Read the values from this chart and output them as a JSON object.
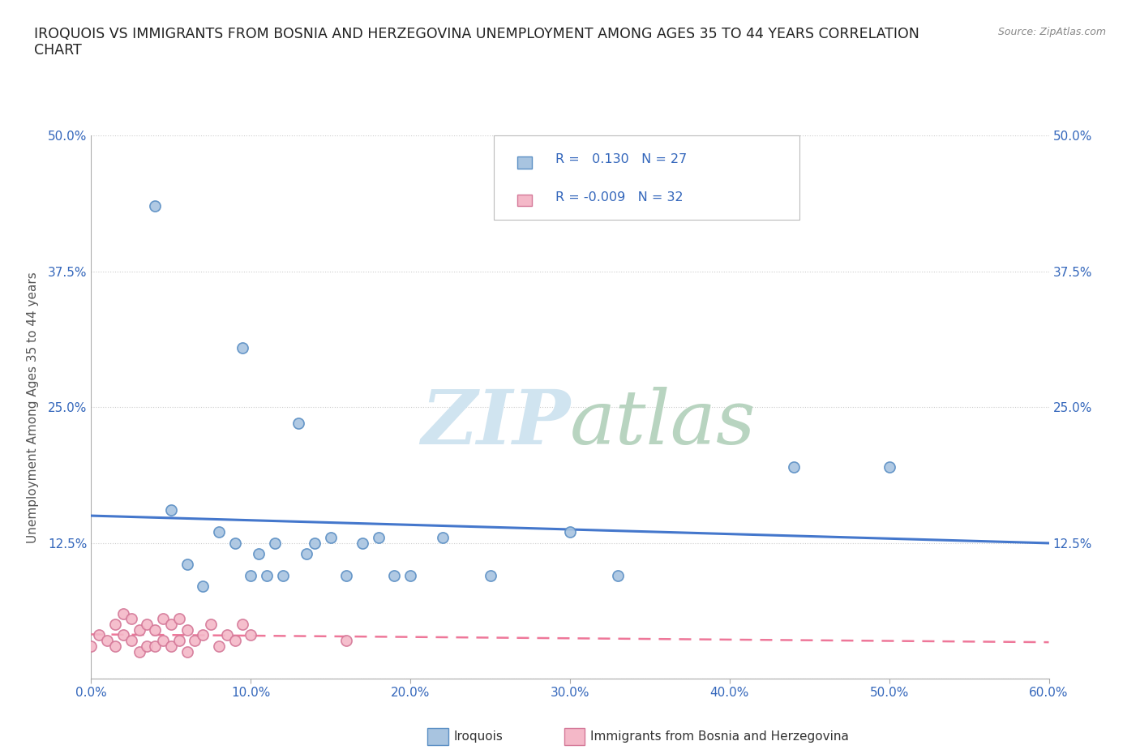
{
  "title": "IROQUOIS VS IMMIGRANTS FROM BOSNIA AND HERZEGOVINA UNEMPLOYMENT AMONG AGES 35 TO 44 YEARS CORRELATION\nCHART",
  "source_text": "Source: ZipAtlas.com",
  "ylabel": "Unemployment Among Ages 35 to 44 years",
  "xlim": [
    0.0,
    0.6
  ],
  "ylim": [
    0.0,
    0.5
  ],
  "xticks": [
    0.0,
    0.1,
    0.2,
    0.3,
    0.4,
    0.5,
    0.6
  ],
  "yticks": [
    0.0,
    0.125,
    0.25,
    0.375,
    0.5
  ],
  "xticklabels": [
    "0.0%",
    "10.0%",
    "20.0%",
    "30.0%",
    "40.0%",
    "50.0%",
    "60.0%"
  ],
  "yticklabels_left": [
    "",
    "12.5%",
    "25.0%",
    "37.5%",
    "50.0%"
  ],
  "yticklabels_right": [
    "",
    "12.5%",
    "25.0%",
    "37.5%",
    "50.0%"
  ],
  "grid_color": "#cccccc",
  "background_color": "#ffffff",
  "iroquois_color": "#a8c4e0",
  "iroquois_edge_color": "#5b8fc4",
  "immigrants_color": "#f4b8c8",
  "immigrants_edge_color": "#d47898",
  "iroquois_line_color": "#4477cc",
  "immigrants_line_color": "#ee7799",
  "watermark_color": "#d0e4f0",
  "R_iroquois": 0.13,
  "N_iroquois": 27,
  "R_immigrants": -0.009,
  "N_immigrants": 32,
  "iroquois_x": [
    0.04,
    0.05,
    0.06,
    0.07,
    0.08,
    0.09,
    0.095,
    0.1,
    0.105,
    0.11,
    0.115,
    0.12,
    0.13,
    0.135,
    0.14,
    0.15,
    0.16,
    0.17,
    0.18,
    0.19,
    0.2,
    0.22,
    0.25,
    0.3,
    0.33,
    0.44,
    0.5
  ],
  "iroquois_y": [
    0.435,
    0.155,
    0.105,
    0.085,
    0.135,
    0.125,
    0.305,
    0.095,
    0.115,
    0.095,
    0.125,
    0.095,
    0.235,
    0.115,
    0.125,
    0.13,
    0.095,
    0.125,
    0.13,
    0.095,
    0.095,
    0.13,
    0.095,
    0.135,
    0.095,
    0.195,
    0.195
  ],
  "immigrants_x": [
    0.0,
    0.005,
    0.01,
    0.015,
    0.015,
    0.02,
    0.02,
    0.025,
    0.025,
    0.03,
    0.03,
    0.035,
    0.035,
    0.04,
    0.04,
    0.045,
    0.045,
    0.05,
    0.05,
    0.055,
    0.055,
    0.06,
    0.06,
    0.065,
    0.07,
    0.075,
    0.08,
    0.085,
    0.09,
    0.095,
    0.1,
    0.16
  ],
  "immigrants_y": [
    0.03,
    0.04,
    0.035,
    0.03,
    0.05,
    0.04,
    0.06,
    0.035,
    0.055,
    0.025,
    0.045,
    0.03,
    0.05,
    0.03,
    0.045,
    0.035,
    0.055,
    0.03,
    0.05,
    0.035,
    0.055,
    0.025,
    0.045,
    0.035,
    0.04,
    0.05,
    0.03,
    0.04,
    0.035,
    0.05,
    0.04,
    0.035
  ]
}
